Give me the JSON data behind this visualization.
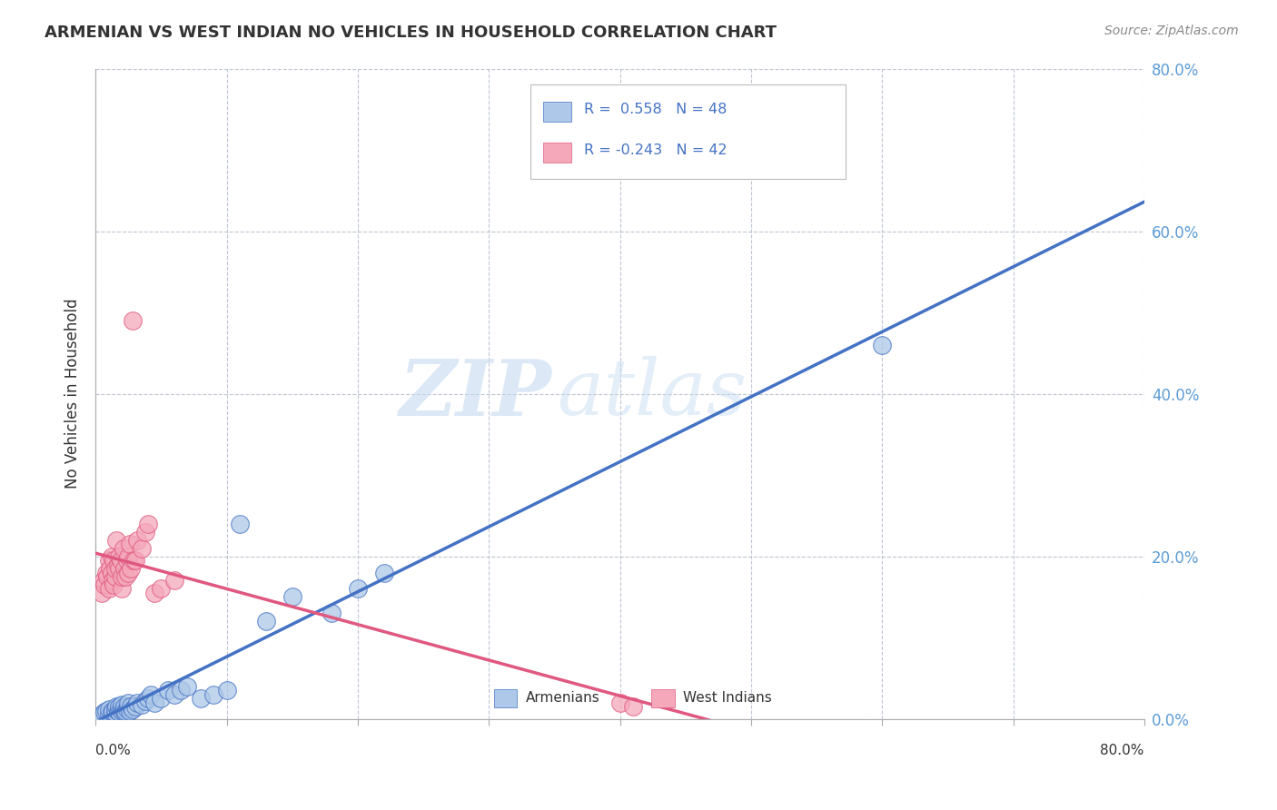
{
  "title": "ARMENIAN VS WEST INDIAN NO VEHICLES IN HOUSEHOLD CORRELATION CHART",
  "source": "Source: ZipAtlas.com",
  "ylabel": "No Vehicles in Household",
  "legend_armenians": "Armenians",
  "legend_west_indians": "West Indians",
  "r_armenian": 0.558,
  "n_armenian": 48,
  "r_west_indian": -0.243,
  "n_west_indian": 42,
  "xlim": [
    0.0,
    0.8
  ],
  "ylim": [
    0.0,
    0.8
  ],
  "armenian_color": "#adc8e8",
  "armenian_line_color": "#4472c4",
  "west_indian_color": "#f4a8ba",
  "west_indian_line_color": "#e05880",
  "background_color": "#ffffff",
  "grid_color": "#b0b8c8",
  "watermark_zip": "ZIP",
  "watermark_atlas": "atlas",
  "armenian_scatter_x": [
    0.005,
    0.007,
    0.008,
    0.01,
    0.01,
    0.012,
    0.013,
    0.015,
    0.015,
    0.016,
    0.017,
    0.018,
    0.018,
    0.019,
    0.02,
    0.02,
    0.021,
    0.022,
    0.022,
    0.023,
    0.024,
    0.025,
    0.025,
    0.026,
    0.027,
    0.028,
    0.03,
    0.032,
    0.035,
    0.038,
    0.04,
    0.042,
    0.045,
    0.05,
    0.055,
    0.06,
    0.065,
    0.07,
    0.08,
    0.09,
    0.1,
    0.11,
    0.13,
    0.15,
    0.18,
    0.2,
    0.22,
    0.6
  ],
  "armenian_scatter_y": [
    0.005,
    0.008,
    0.01,
    0.006,
    0.012,
    0.008,
    0.01,
    0.007,
    0.012,
    0.015,
    0.01,
    0.008,
    0.015,
    0.012,
    0.01,
    0.018,
    0.012,
    0.008,
    0.015,
    0.01,
    0.012,
    0.015,
    0.02,
    0.01,
    0.015,
    0.012,
    0.015,
    0.02,
    0.018,
    0.022,
    0.025,
    0.03,
    0.02,
    0.025,
    0.035,
    0.03,
    0.035,
    0.04,
    0.025,
    0.03,
    0.035,
    0.24,
    0.12,
    0.15,
    0.13,
    0.16,
    0.18,
    0.46
  ],
  "west_indian_scatter_x": [
    0.005,
    0.006,
    0.007,
    0.008,
    0.009,
    0.01,
    0.01,
    0.011,
    0.012,
    0.012,
    0.013,
    0.014,
    0.014,
    0.015,
    0.015,
    0.016,
    0.017,
    0.018,
    0.018,
    0.019,
    0.02,
    0.02,
    0.021,
    0.022,
    0.023,
    0.024,
    0.025,
    0.025,
    0.026,
    0.027,
    0.028,
    0.029,
    0.03,
    0.032,
    0.035,
    0.038,
    0.04,
    0.045,
    0.05,
    0.06,
    0.4,
    0.41
  ],
  "west_indian_scatter_y": [
    0.155,
    0.17,
    0.165,
    0.18,
    0.175,
    0.16,
    0.195,
    0.185,
    0.18,
    0.2,
    0.17,
    0.165,
    0.195,
    0.175,
    0.185,
    0.22,
    0.19,
    0.185,
    0.2,
    0.195,
    0.16,
    0.175,
    0.21,
    0.185,
    0.175,
    0.195,
    0.18,
    0.2,
    0.215,
    0.185,
    0.49,
    0.195,
    0.195,
    0.22,
    0.21,
    0.23,
    0.24,
    0.155,
    0.16,
    0.17,
    0.02,
    0.015
  ]
}
